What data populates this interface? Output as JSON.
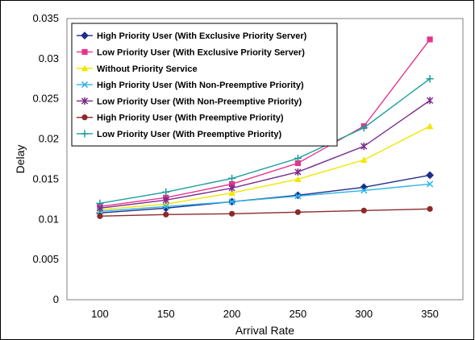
{
  "chart_data": {
    "type": "line",
    "title": "",
    "xlabel": "Arrival Rate",
    "ylabel": "Delay",
    "x": [
      100,
      150,
      200,
      250,
      300,
      350
    ],
    "xlim": [
      75,
      375
    ],
    "ylim": [
      0,
      0.035
    ],
    "yticks": [
      "0",
      "0.005",
      "0.01",
      "0.015",
      "0.02",
      "0.025",
      "0.03",
      "0.035"
    ],
    "xticks": [
      "100",
      "150",
      "200",
      "250",
      "300",
      "350"
    ],
    "grid": "horizontal",
    "legend_position": "top-left",
    "series": [
      {
        "name": "High Priority User (With Exclusive Priority Server)",
        "color": "#1f2d8c",
        "marker": "diamond",
        "values": [
          0.0108,
          0.0114,
          0.0122,
          0.013,
          0.014,
          0.0155
        ]
      },
      {
        "name": "Low Priority User (With Exclusive Priority Server)",
        "color": "#e6348c",
        "marker": "square",
        "values": [
          0.0116,
          0.0127,
          0.0144,
          0.017,
          0.0216,
          0.0324
        ]
      },
      {
        "name": "Without Priority Service",
        "color": "#f2e600",
        "marker": "triangle",
        "values": [
          0.0112,
          0.0119,
          0.0133,
          0.015,
          0.0174,
          0.0216
        ]
      },
      {
        "name": "High Priority User (With Non-Preemptive Priority)",
        "color": "#2fb4e6",
        "marker": "x",
        "values": [
          0.011,
          0.0116,
          0.0122,
          0.0129,
          0.0136,
          0.0144
        ]
      },
      {
        "name": "Low Priority User (With Non-Preemptive Priority)",
        "color": "#7b2a8c",
        "marker": "star",
        "values": [
          0.0114,
          0.0124,
          0.0139,
          0.0159,
          0.0191,
          0.0248
        ]
      },
      {
        "name": "High Priority User (With Preemptive Priority)",
        "color": "#8c2a2a",
        "marker": "circle",
        "values": [
          0.0104,
          0.0106,
          0.0107,
          0.0109,
          0.0111,
          0.0113
        ]
      },
      {
        "name": "Low Priority User (With Preemptive Priority)",
        "color": "#1a9e9e",
        "marker": "plus",
        "values": [
          0.012,
          0.0134,
          0.0151,
          0.0176,
          0.0214,
          0.0275
        ]
      }
    ]
  }
}
